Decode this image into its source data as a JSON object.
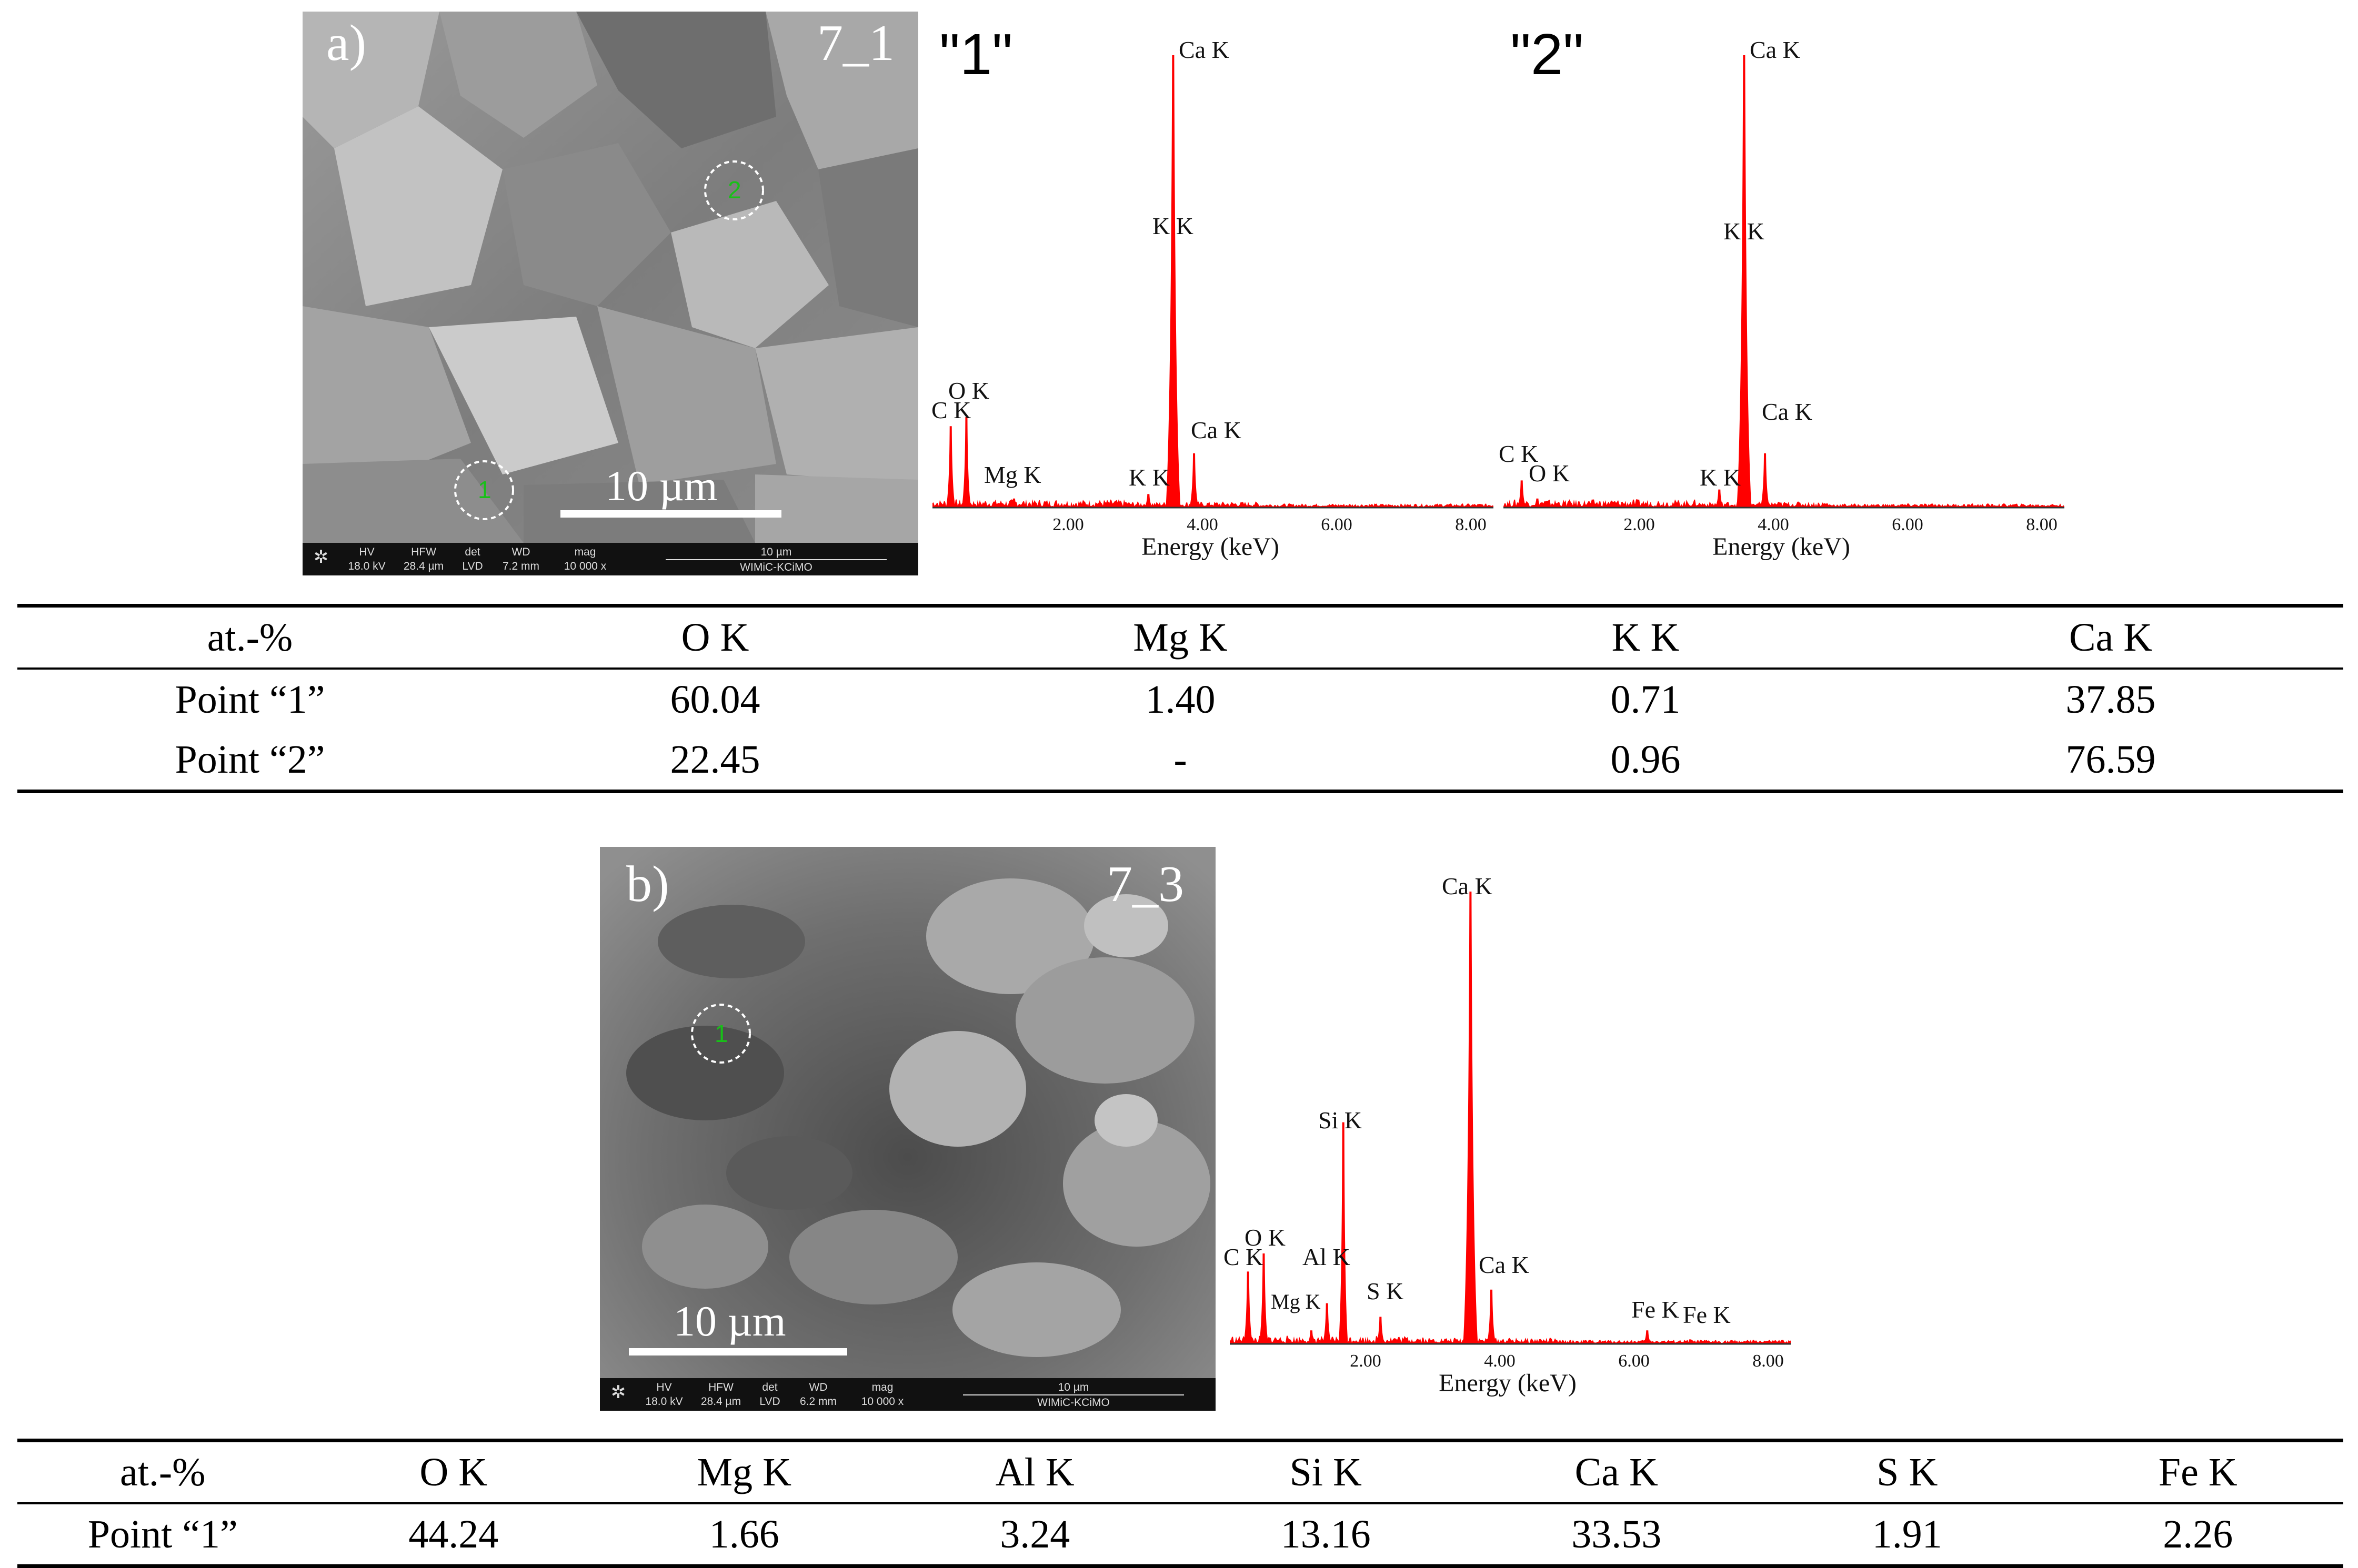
{
  "panel_a": {
    "label": "a)",
    "sample": "7_1",
    "scale_bar": "10 µm",
    "point_markers": [
      "1",
      "2"
    ],
    "info_bar": {
      "headers": [
        "HV",
        "HFW",
        "det",
        "WD",
        "mag"
      ],
      "values": [
        "18.0 kV",
        "28.4 µm",
        "LVD",
        "7.2 mm",
        "10 000 x"
      ],
      "scale": "10 µm",
      "lab": "WIMiC-KCiMO"
    }
  },
  "spectrum_1": {
    "title": "\"1\"",
    "xlabel": "Energy (keV)",
    "ticks": [
      "2.00",
      "4.00",
      "6.00",
      "8.00"
    ],
    "peak_labels": [
      "Ca K",
      "K K",
      "O K",
      "C K",
      "Ca K",
      "Mg K",
      "K K"
    ]
  },
  "spectrum_2": {
    "title": "\"2\"",
    "xlabel": "Energy (keV)",
    "ticks": [
      "2.00",
      "4.00",
      "6.00",
      "8.00"
    ],
    "peak_labels": [
      "Ca K",
      "K K",
      "Ca K",
      "C K",
      "O K",
      "K K"
    ]
  },
  "table_a": {
    "headers": [
      "at.-%",
      "O K",
      "Mg K",
      "K K",
      "Ca K"
    ],
    "rows": [
      [
        "Point “1”",
        "60.04",
        "1.40",
        "0.71",
        "37.85"
      ],
      [
        "Point “2”",
        "22.45",
        "-",
        "0.96",
        "76.59"
      ]
    ]
  },
  "panel_b": {
    "label": "b)",
    "sample": "7_3",
    "scale_bar": "10 µm",
    "point_markers": [
      "1"
    ],
    "info_bar": {
      "headers": [
        "HV",
        "HFW",
        "det",
        "WD",
        "mag"
      ],
      "values": [
        "18.0 kV",
        "28.4 µm",
        "LVD",
        "6.2 mm",
        "10 000 x"
      ],
      "scale": "10 µm",
      "lab": "WIMiC-KCiMO"
    }
  },
  "spectrum_3": {
    "xlabel": "Energy (keV)",
    "ticks": [
      "2.00",
      "4.00",
      "6.00",
      "8.00"
    ],
    "peak_labels": [
      "Ca K",
      "Si K",
      "O K",
      "C K",
      "Al K",
      "Mg K",
      "S K",
      "Ca K",
      "Fe K",
      "Fe K"
    ]
  },
  "table_b": {
    "headers": [
      "at.-%",
      "O K",
      "Mg K",
      "Al K",
      "Si K",
      "Ca K",
      "S K",
      "Fe K"
    ],
    "rows": [
      [
        "Point “1”",
        "44.24",
        "1.66",
        "3.24",
        "13.16",
        "33.53",
        "1.91",
        "2.26"
      ]
    ]
  },
  "chart_data": [
    {
      "type": "area",
      "title": "\"1\"",
      "xlabel": "Energy (keV)",
      "ylabel": "",
      "xlim": [
        0,
        8.6
      ],
      "x_ticks": [
        2.0,
        4.0,
        6.0,
        8.0
      ],
      "series": [
        {
          "color": "#ff0000",
          "peaks": [
            {
              "label": "C K",
              "x": 0.28,
              "y": 0.18
            },
            {
              "label": "O K",
              "x": 0.52,
              "y": 0.2
            },
            {
              "label": "Mg K",
              "x": 1.25,
              "y": 0.02
            },
            {
              "label": "K K",
              "x": 3.31,
              "y": 0.03
            },
            {
              "label": "Ca K",
              "x": 3.69,
              "y": 1.0
            },
            {
              "label": "Ca K",
              "x": 4.01,
              "y": 0.12
            }
          ]
        }
      ]
    },
    {
      "type": "area",
      "title": "\"2\"",
      "xlabel": "Energy (keV)",
      "ylabel": "",
      "xlim": [
        0,
        8.6
      ],
      "x_ticks": [
        2.0,
        4.0,
        6.0,
        8.0
      ],
      "series": [
        {
          "color": "#ff0000",
          "peaks": [
            {
              "label": "C K",
              "x": 0.28,
              "y": 0.06
            },
            {
              "label": "O K",
              "x": 0.52,
              "y": 0.02
            },
            {
              "label": "K K",
              "x": 3.31,
              "y": 0.04
            },
            {
              "label": "Ca K",
              "x": 3.69,
              "y": 1.0
            },
            {
              "label": "Ca K",
              "x": 4.01,
              "y": 0.12
            }
          ]
        }
      ]
    },
    {
      "type": "area",
      "title": "",
      "xlabel": "Energy (keV)",
      "ylabel": "",
      "xlim": [
        0,
        8.6
      ],
      "x_ticks": [
        2.0,
        4.0,
        6.0,
        8.0
      ],
      "series": [
        {
          "color": "#ff0000",
          "peaks": [
            {
              "label": "C K",
              "x": 0.28,
              "y": 0.16
            },
            {
              "label": "O K",
              "x": 0.52,
              "y": 0.2
            },
            {
              "label": "Mg K",
              "x": 1.25,
              "y": 0.03
            },
            {
              "label": "Al K",
              "x": 1.49,
              "y": 0.09
            },
            {
              "label": "Si K",
              "x": 1.74,
              "y": 0.49
            },
            {
              "label": "S K",
              "x": 2.31,
              "y": 0.06
            },
            {
              "label": "Ca K",
              "x": 3.69,
              "y": 1.0
            },
            {
              "label": "Ca K",
              "x": 4.01,
              "y": 0.12
            },
            {
              "label": "Fe K",
              "x": 6.4,
              "y": 0.03
            },
            {
              "label": "Fe K",
              "x": 7.06,
              "y": 0.01
            }
          ]
        }
      ]
    }
  ]
}
